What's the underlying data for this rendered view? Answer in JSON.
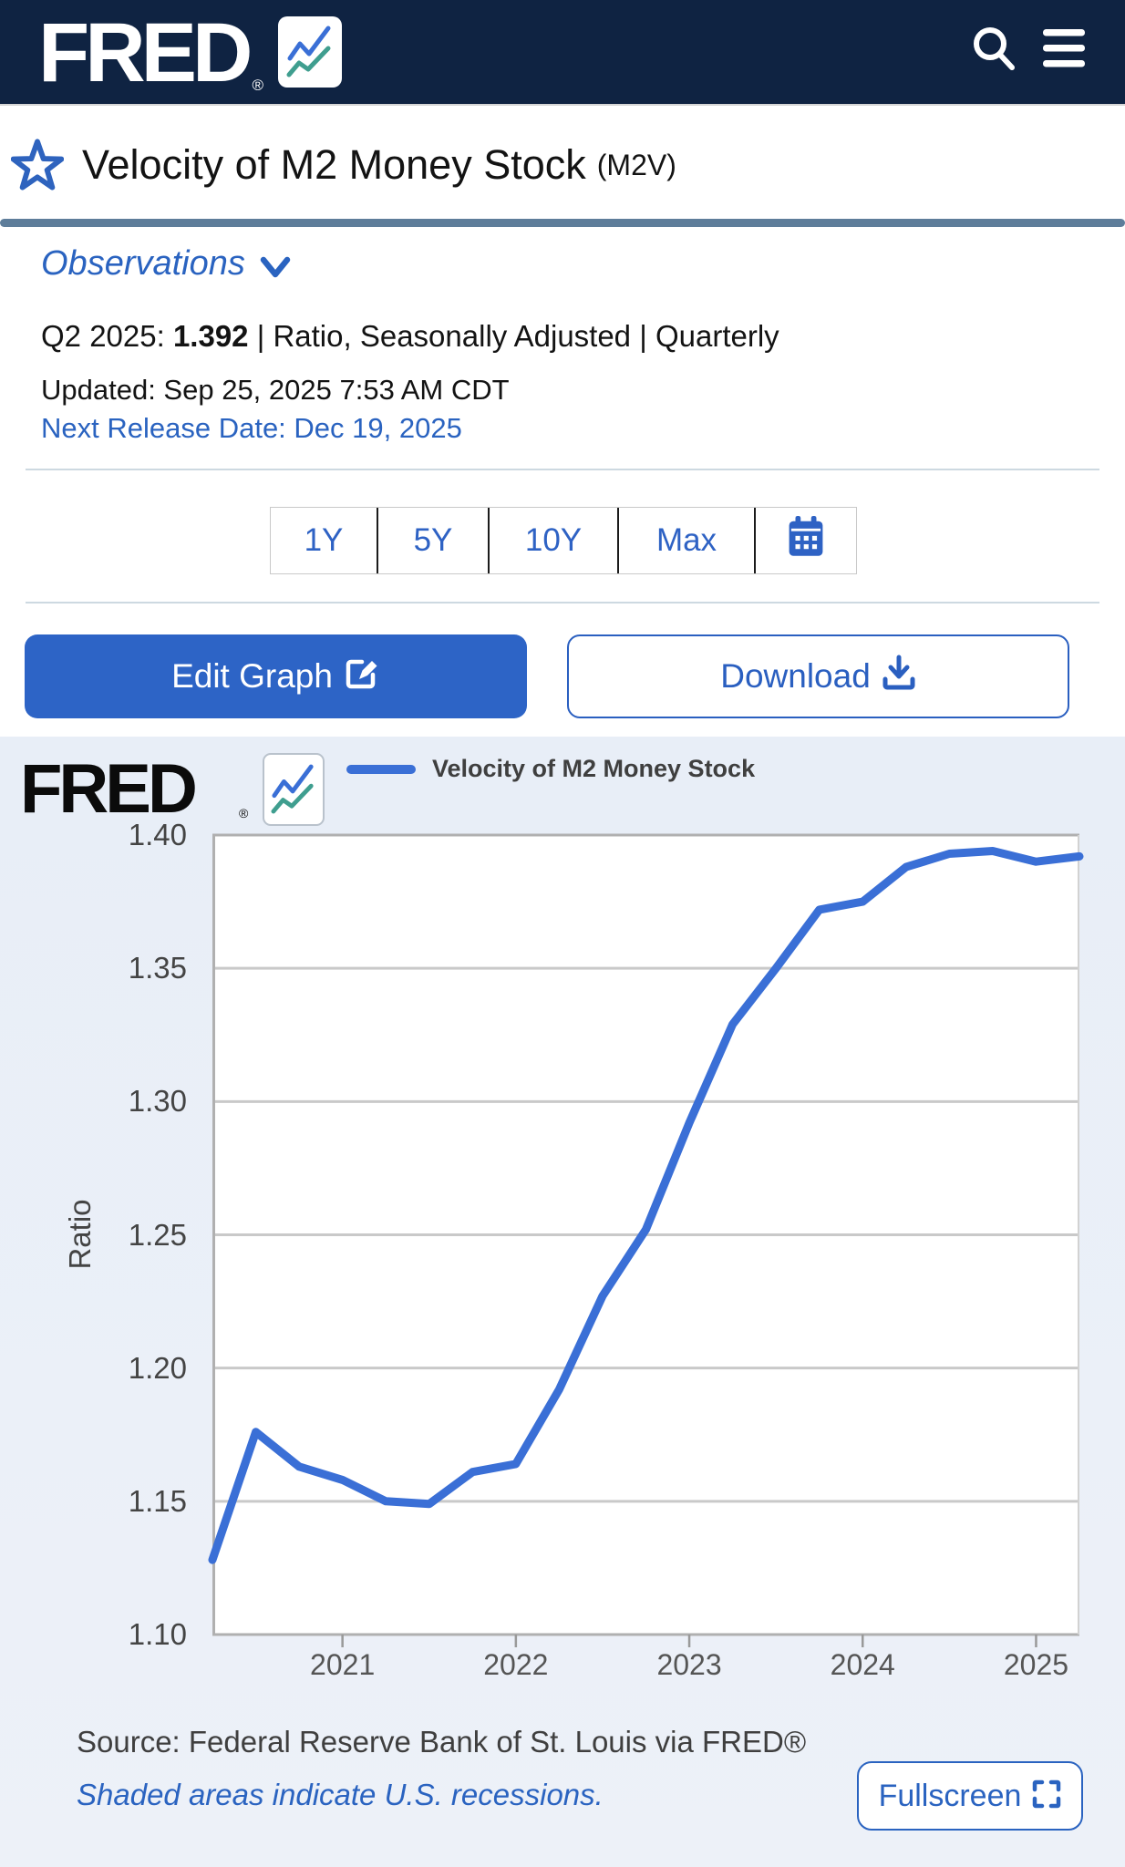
{
  "header": {
    "logo": "FRED",
    "logo_reg": "®"
  },
  "page": {
    "title": "Velocity of M2 Money Stock",
    "series_id": "(M2V)"
  },
  "observations": {
    "label": "Observations",
    "period": "Q2 2025: ",
    "value": "1.392",
    "meta": " | Ratio, Seasonally Adjusted | Quarterly",
    "updated": "Updated: Sep 25, 2025 7:53 AM CDT",
    "next_release": "Next Release Date: Dec 19, 2025"
  },
  "range_selector": {
    "options": [
      "1Y",
      "5Y",
      "10Y",
      "Max"
    ]
  },
  "actions": {
    "edit": "Edit Graph",
    "download": "Download"
  },
  "chart_header": {
    "logo": "FRED",
    "logo_reg": "®",
    "legend_label": "Velocity of M2 Money Stock"
  },
  "chart_footer": {
    "source": "Source: Federal Reserve Bank of St. Louis via FRED®",
    "note": "Shaded areas indicate U.S. recessions.",
    "fullscreen": "Fullscreen"
  },
  "colors": {
    "accent_blue": "#2a63c0",
    "line_blue": "#3a6fd6",
    "header_navy": "#0f2342",
    "chart_bg": "#e9eef7",
    "divider_slate": "#5e7d9a",
    "gridline": "#c9c9c9"
  },
  "chart_data": {
    "type": "line",
    "title": "Velocity of M2 Money Stock",
    "ylabel": "Ratio",
    "ylim": [
      1.1,
      1.4
    ],
    "y_ticks": [
      1.4,
      1.35,
      1.3,
      1.25,
      1.2,
      1.15,
      1.1
    ],
    "grid": true,
    "legend_position": "top",
    "x": [
      "2020 Q2",
      "2020 Q3",
      "2020 Q4",
      "2021 Q1",
      "2021 Q2",
      "2021 Q3",
      "2021 Q4",
      "2022 Q1",
      "2022 Q2",
      "2022 Q3",
      "2022 Q4",
      "2023 Q1",
      "2023 Q2",
      "2023 Q3",
      "2023 Q4",
      "2024 Q1",
      "2024 Q2",
      "2024 Q3",
      "2024 Q4",
      "2025 Q1",
      "2025 Q2"
    ],
    "values": [
      1.128,
      1.176,
      1.163,
      1.158,
      1.15,
      1.149,
      1.161,
      1.164,
      1.192,
      1.227,
      1.252,
      1.292,
      1.329,
      1.35,
      1.372,
      1.375,
      1.388,
      1.393,
      1.394,
      1.39,
      1.392
    ],
    "x_tick_labels": [
      "2021",
      "2022",
      "2023",
      "2024",
      "2025"
    ],
    "line_color": "#3a6fd6"
  }
}
